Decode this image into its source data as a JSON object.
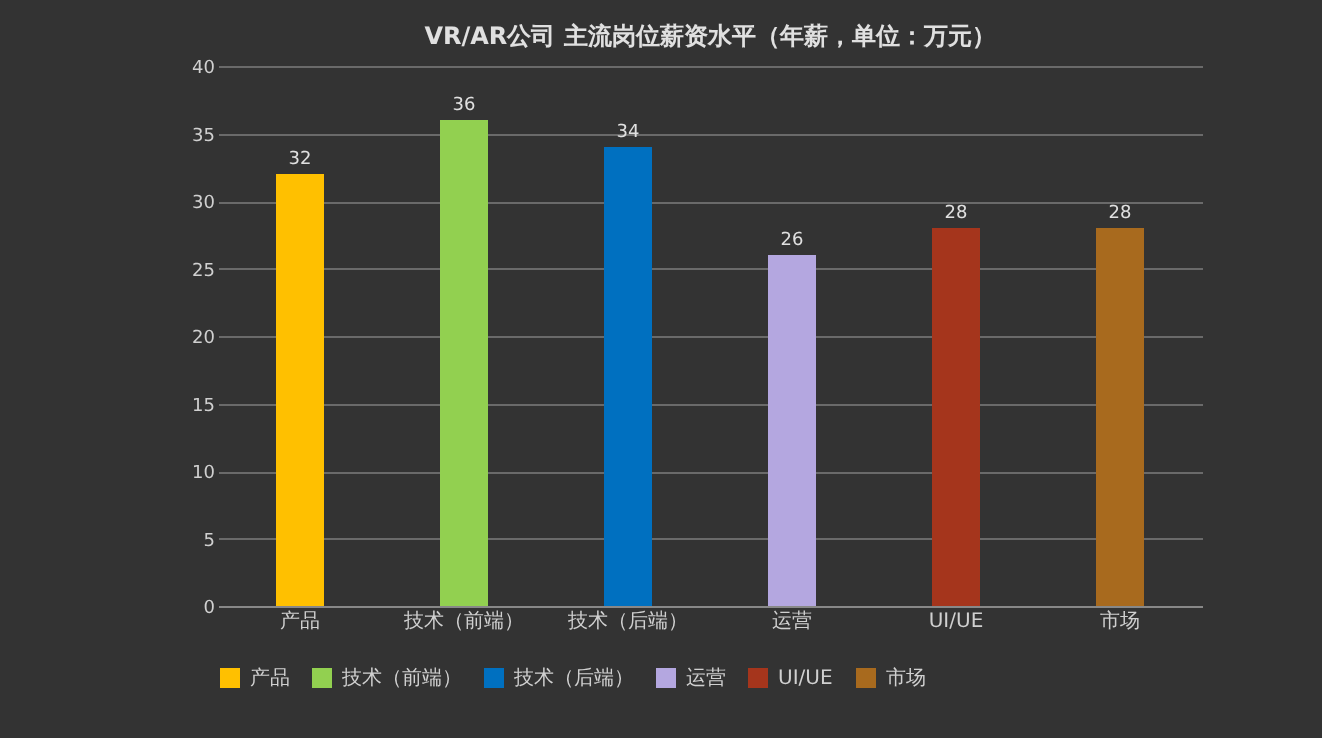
{
  "chart_data": {
    "type": "bar",
    "title": "VR/AR公司 主流岗位薪资水平（年薪，单位：万元）",
    "categories": [
      "产品",
      "技术（前端）",
      "技术（后端）",
      "运营",
      "UI/UE",
      "市场"
    ],
    "series": [
      {
        "name": "产品",
        "color": "#ffc000",
        "values": [
          32,
          null,
          null,
          null,
          null,
          null
        ]
      },
      {
        "name": "技术（前端）",
        "color": "#92d050",
        "values": [
          null,
          36,
          null,
          null,
          null,
          null
        ]
      },
      {
        "name": "技术（后端）",
        "color": "#0070c0",
        "values": [
          null,
          null,
          34,
          null,
          null,
          null
        ]
      },
      {
        "name": "运营",
        "color": "#b4a7e0",
        "values": [
          null,
          null,
          null,
          26,
          null,
          null
        ]
      },
      {
        "name": "UI/UE",
        "color": "#a5351c",
        "values": [
          null,
          null,
          null,
          null,
          28,
          null
        ]
      },
      {
        "name": "市场",
        "color": "#a86a1e",
        "values": [
          null,
          null,
          null,
          null,
          null,
          28
        ]
      }
    ],
    "ylim": [
      0,
      40
    ],
    "yticks": [
      0,
      5,
      10,
      15,
      20,
      25,
      30,
      35,
      40
    ],
    "grid": "y",
    "legend": "bottom",
    "data_labels": true
  }
}
